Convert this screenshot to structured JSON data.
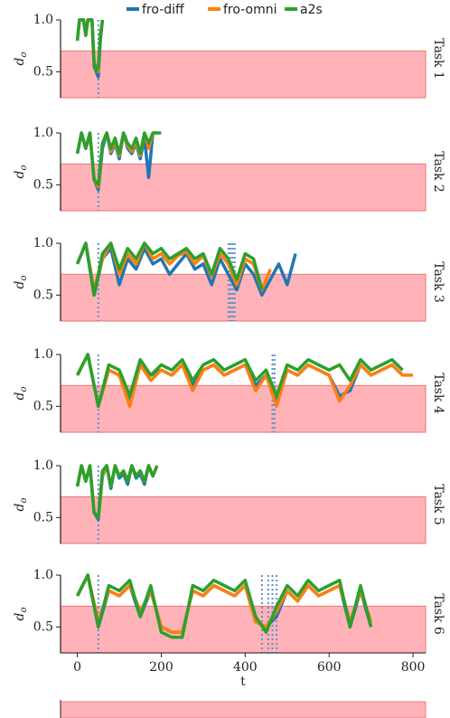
{
  "chart_data": [
    {
      "type": "line",
      "label": "Task 1",
      "ylabel": "d",
      "ylabel_subscript": "o",
      "xlim": [
        -40,
        830
      ],
      "ylim": [
        0.25,
        1.0
      ],
      "yticks": [
        0.5,
        {
          "value": 1,
          "label": "1.0"
        }
      ],
      "threshold": 0.7,
      "threshold_color": "#ffb3b8",
      "switches": [
        50
      ],
      "x": [
        0,
        5,
        10,
        15,
        20,
        25,
        30,
        35,
        40,
        45,
        50,
        55,
        60
      ],
      "series": [
        {
          "name": "fro-diff",
          "color": "#1f77b4",
          "values": [
            0.8,
            1.0,
            1.0,
            1.0,
            0.85,
            1.0,
            1.0,
            1.0,
            0.55,
            0.5,
            0.45,
            0.8,
            1.0
          ]
        },
        {
          "name": "fro-omni",
          "color": "#ff7f0e",
          "values": [
            0.8,
            1.0,
            1.0,
            1.0,
            0.85,
            1.0,
            1.0,
            1.0,
            0.58,
            0.52,
            0.5,
            0.85,
            1.0
          ]
        },
        {
          "name": "a2s",
          "color": "#2ca02c",
          "values": [
            0.8,
            1.0,
            1.0,
            1.0,
            0.85,
            1.0,
            1.0,
            1.0,
            0.6,
            0.5,
            0.55,
            0.85,
            1.0
          ]
        }
      ]
    },
    {
      "type": "line",
      "label": "Task 2",
      "ylabel": "d",
      "ylabel_subscript": "o",
      "xlim": [
        -40,
        830
      ],
      "ylim": [
        0.25,
        1.0
      ],
      "yticks": [
        0.5,
        {
          "value": 1,
          "label": "1.0"
        }
      ],
      "threshold": 0.7,
      "threshold_color": "#ffb3b8",
      "switches": [
        50
      ],
      "x": [
        0,
        10,
        20,
        30,
        40,
        50,
        60,
        70,
        80,
        90,
        100,
        110,
        120,
        130,
        140,
        150,
        160,
        170,
        180,
        190,
        200
      ],
      "series": [
        {
          "name": "fro-diff",
          "color": "#1f77b4",
          "values": [
            0.8,
            1.0,
            0.85,
            1.0,
            0.55,
            0.45,
            0.85,
            1.0,
            0.8,
            0.9,
            0.75,
            1.0,
            0.85,
            0.8,
            0.9,
            0.75,
            0.95,
            0.57,
            1.0,
            null,
            null
          ]
        },
        {
          "name": "fro-omni",
          "color": "#ff7f0e",
          "values": [
            0.8,
            1.0,
            0.85,
            1.0,
            0.55,
            0.48,
            0.9,
            1.0,
            0.82,
            0.92,
            0.78,
            1.0,
            0.88,
            0.82,
            0.92,
            0.78,
            1.0,
            0.85,
            1.0,
            1.0,
            null
          ]
        },
        {
          "name": "a2s",
          "color": "#2ca02c",
          "values": [
            0.8,
            1.0,
            0.85,
            1.0,
            0.55,
            0.5,
            0.9,
            1.0,
            0.85,
            0.95,
            0.8,
            1.0,
            0.9,
            0.85,
            0.95,
            0.8,
            1.0,
            0.9,
            1.0,
            1.0,
            1.0
          ]
        }
      ]
    },
    {
      "type": "line",
      "label": "Task 3",
      "ylabel": "d",
      "ylabel_subscript": "o",
      "xlim": [
        -40,
        830
      ],
      "ylim": [
        0.25,
        1.0
      ],
      "yticks": [
        0.5,
        {
          "value": 1,
          "label": "1.0"
        }
      ],
      "threshold": 0.7,
      "threshold_color": "#ffb3b8",
      "switches": [
        50,
        360,
        365,
        370,
        375
      ],
      "x": [
        0,
        20,
        40,
        60,
        80,
        100,
        120,
        140,
        160,
        180,
        200,
        220,
        240,
        260,
        280,
        300,
        320,
        340,
        360,
        380,
        400,
        420,
        440,
        460,
        480,
        500,
        520
      ],
      "series": [
        {
          "name": "fro-diff",
          "color": "#1f77b4",
          "values": [
            0.8,
            1.0,
            0.5,
            0.85,
            0.95,
            0.6,
            0.85,
            0.75,
            0.95,
            0.8,
            0.85,
            0.7,
            0.8,
            0.9,
            0.75,
            0.8,
            0.6,
            0.85,
            0.7,
            0.55,
            0.8,
            0.7,
            0.5,
            0.65,
            0.8,
            0.6,
            0.9
          ]
        },
        {
          "name": "fro-omni",
          "color": "#ff7f0e",
          "values": [
            0.8,
            1.0,
            0.55,
            0.85,
            1.0,
            0.7,
            0.9,
            0.8,
            1.0,
            0.85,
            0.9,
            0.8,
            0.88,
            0.92,
            0.8,
            0.88,
            0.68,
            0.9,
            0.8,
            0.6,
            0.85,
            0.8,
            0.55,
            0.75,
            null,
            null,
            null
          ]
        },
        {
          "name": "a2s",
          "color": "#2ca02c",
          "values": [
            0.8,
            1.0,
            0.5,
            0.9,
            1.0,
            0.75,
            0.95,
            0.85,
            1.0,
            0.9,
            0.95,
            0.85,
            0.9,
            0.95,
            0.85,
            0.9,
            0.7,
            0.95,
            0.85,
            0.65,
            0.9,
            0.85,
            0.55,
            null,
            null,
            null,
            null
          ]
        }
      ]
    },
    {
      "type": "line",
      "label": "Task 4",
      "ylabel": "d",
      "ylabel_subscript": "o",
      "xlim": [
        -40,
        830
      ],
      "ylim": [
        0.25,
        1.0
      ],
      "yticks": [
        0.5,
        {
          "value": 1,
          "label": "1.0"
        }
      ],
      "threshold": 0.7,
      "threshold_color": "#ffb3b8",
      "switches": [
        50,
        465,
        470
      ],
      "x": [
        0,
        25,
        50,
        75,
        100,
        125,
        150,
        175,
        200,
        225,
        250,
        275,
        300,
        325,
        350,
        375,
        400,
        425,
        450,
        475,
        500,
        525,
        550,
        575,
        600,
        625,
        650,
        675,
        700,
        725,
        750,
        775,
        800
      ],
      "series": [
        {
          "name": "fro-diff",
          "color": "#1f77b4",
          "values": [
            0.8,
            1.0,
            0.5,
            0.85,
            0.8,
            0.55,
            0.9,
            0.8,
            0.85,
            0.8,
            0.9,
            0.7,
            0.85,
            0.9,
            0.8,
            0.85,
            0.9,
            0.7,
            0.8,
            0.55,
            0.85,
            0.8,
            0.9,
            0.85,
            0.8,
            0.6,
            0.65,
            0.9,
            0.8,
            0.85,
            0.9,
            0.8,
            null
          ]
        },
        {
          "name": "fro-omni",
          "color": "#ff7f0e",
          "values": [
            0.8,
            1.0,
            0.5,
            0.85,
            0.8,
            0.5,
            0.9,
            0.75,
            0.85,
            0.8,
            0.9,
            0.65,
            0.85,
            0.9,
            0.8,
            0.85,
            0.9,
            0.65,
            0.8,
            0.5,
            0.85,
            0.8,
            0.9,
            0.85,
            0.8,
            0.55,
            0.7,
            0.9,
            0.8,
            0.85,
            0.9,
            0.8,
            0.8
          ]
        },
        {
          "name": "a2s",
          "color": "#2ca02c",
          "values": [
            0.8,
            1.0,
            0.5,
            0.9,
            0.85,
            0.6,
            0.95,
            0.8,
            0.9,
            0.85,
            0.95,
            0.75,
            0.9,
            0.95,
            0.85,
            0.9,
            0.95,
            0.75,
            0.85,
            0.6,
            0.9,
            0.85,
            0.95,
            0.9,
            0.85,
            0.9,
            0.75,
            0.95,
            0.85,
            0.9,
            0.95,
            0.85,
            null
          ]
        }
      ]
    },
    {
      "type": "line",
      "label": "Task 5",
      "ylabel": "d",
      "ylabel_subscript": "o",
      "xlim": [
        -40,
        830
      ],
      "ylim": [
        0.25,
        1.0
      ],
      "yticks": [
        0.5,
        {
          "value": 1,
          "label": "1.0"
        }
      ],
      "threshold": 0.7,
      "threshold_color": "#ffb3b8",
      "switches": [
        50
      ],
      "x": [
        0,
        10,
        20,
        30,
        40,
        50,
        60,
        70,
        80,
        90,
        100,
        110,
        120,
        130,
        140,
        150,
        160,
        170,
        180,
        190
      ],
      "series": [
        {
          "name": "fro-diff",
          "color": "#1f77b4",
          "values": [
            0.8,
            1.0,
            0.85,
            1.0,
            0.55,
            0.48,
            0.9,
            1.0,
            0.78,
            1.0,
            0.88,
            0.92,
            0.82,
            1.0,
            0.88,
            0.92,
            0.82,
            1.0,
            0.9,
            null
          ]
        },
        {
          "name": "fro-omni",
          "color": "#ff7f0e",
          "values": [
            0.8,
            1.0,
            0.85,
            1.0,
            0.55,
            0.5,
            0.92,
            1.0,
            0.8,
            1.0,
            0.9,
            0.95,
            0.85,
            1.0,
            0.9,
            0.95,
            0.85,
            1.0,
            0.9,
            1.0
          ]
        },
        {
          "name": "a2s",
          "color": "#2ca02c",
          "values": [
            0.8,
            1.0,
            0.85,
            1.0,
            0.55,
            0.5,
            0.95,
            1.0,
            0.8,
            1.0,
            0.9,
            0.95,
            0.85,
            1.0,
            0.9,
            0.95,
            0.85,
            1.0,
            0.9,
            1.0
          ]
        }
      ]
    },
    {
      "type": "line",
      "label": "Task 6",
      "ylabel": "d",
      "ylabel_subscript": "o",
      "xlabel": "t",
      "xlim": [
        -40,
        830
      ],
      "ylim": [
        0.25,
        1.0
      ],
      "yticks": [
        0.5,
        {
          "value": 1,
          "label": "1.0"
        }
      ],
      "xticks": [
        0,
        200,
        400,
        600,
        800
      ],
      "threshold": 0.7,
      "threshold_color": "#ffb3b8",
      "switches": [
        50,
        440,
        455,
        465,
        475
      ],
      "x": [
        0,
        25,
        50,
        75,
        100,
        125,
        150,
        175,
        200,
        225,
        250,
        275,
        300,
        325,
        350,
        375,
        400,
        425,
        450,
        475,
        500,
        525,
        550,
        575,
        600,
        625,
        650,
        675,
        700
      ],
      "series": [
        {
          "name": "fro-diff",
          "color": "#1f77b4",
          "values": [
            0.8,
            1.0,
            0.5,
            0.85,
            0.8,
            0.9,
            0.6,
            0.85,
            0.5,
            0.45,
            0.45,
            0.85,
            0.8,
            0.9,
            0.85,
            0.8,
            0.9,
            0.55,
            0.5,
            0.6,
            0.85,
            0.75,
            0.9,
            0.8,
            0.85,
            0.9,
            0.5,
            0.85,
            0.5
          ]
        },
        {
          "name": "fro-omni",
          "color": "#ff7f0e",
          "values": [
            0.8,
            1.0,
            0.55,
            0.85,
            0.8,
            0.9,
            0.65,
            0.85,
            0.5,
            0.45,
            0.45,
            0.85,
            0.8,
            0.9,
            0.85,
            0.8,
            0.9,
            0.55,
            0.5,
            0.65,
            0.85,
            0.75,
            0.9,
            0.8,
            0.85,
            0.9,
            0.55,
            0.85,
            0.55
          ]
        },
        {
          "name": "a2s",
          "color": "#2ca02c",
          "values": [
            0.8,
            1.0,
            0.5,
            0.9,
            0.85,
            0.95,
            0.6,
            0.9,
            0.45,
            0.4,
            0.4,
            0.9,
            0.85,
            0.95,
            0.9,
            0.85,
            0.95,
            0.6,
            0.45,
            0.7,
            0.9,
            0.8,
            0.95,
            0.85,
            0.9,
            0.95,
            0.5,
            0.9,
            0.5
          ]
        }
      ]
    }
  ]
}
